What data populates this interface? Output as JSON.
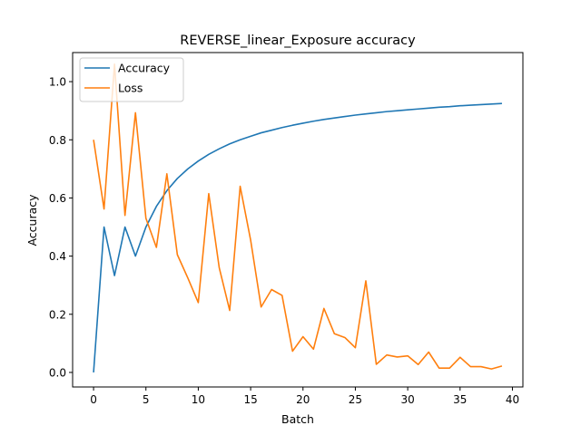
{
  "chart_data": {
    "type": "line",
    "title": "REVERSE_linear_Exposure accuracy",
    "xlabel": "Batch",
    "ylabel": "Accuracy",
    "xlim": [
      -2,
      41
    ],
    "ylim": [
      -0.05,
      1.1
    ],
    "xticks": [
      0,
      5,
      10,
      15,
      20,
      25,
      30,
      35,
      40
    ],
    "yticks": [
      0.0,
      0.2,
      0.4,
      0.6,
      0.8,
      1.0
    ],
    "xtick_labels": [
      "0",
      "5",
      "10",
      "15",
      "20",
      "25",
      "30",
      "35",
      "40"
    ],
    "ytick_labels": [
      "0.0",
      "0.2",
      "0.4",
      "0.6",
      "0.8",
      "1.0"
    ],
    "grid": false,
    "legend_position": "top-left",
    "x": [
      0,
      1,
      2,
      3,
      4,
      5,
      6,
      7,
      8,
      9,
      10,
      11,
      12,
      13,
      14,
      15,
      16,
      17,
      18,
      19,
      20,
      21,
      22,
      23,
      24,
      25,
      26,
      27,
      28,
      29,
      30,
      31,
      32,
      33,
      34,
      35,
      36,
      37,
      38,
      39
    ],
    "series": [
      {
        "name": "Accuracy",
        "color": "#1f77b4",
        "values": [
          0.0,
          0.5,
          0.333,
          0.5,
          0.4,
          0.5,
          0.571,
          0.625,
          0.667,
          0.7,
          0.727,
          0.75,
          0.769,
          0.786,
          0.8,
          0.812,
          0.824,
          0.833,
          0.842,
          0.85,
          0.857,
          0.864,
          0.87,
          0.875,
          0.88,
          0.885,
          0.889,
          0.893,
          0.897,
          0.9,
          0.903,
          0.906,
          0.909,
          0.912,
          0.914,
          0.917,
          0.919,
          0.921,
          0.923,
          0.925
        ]
      },
      {
        "name": "Loss",
        "color": "#ff7f0e",
        "values": [
          0.8,
          0.562,
          1.06,
          0.54,
          0.893,
          0.53,
          0.43,
          0.683,
          0.405,
          0.325,
          0.24,
          0.615,
          0.36,
          0.213,
          0.64,
          0.455,
          0.225,
          0.285,
          0.265,
          0.073,
          0.123,
          0.08,
          0.22,
          0.133,
          0.12,
          0.085,
          0.315,
          0.028,
          0.06,
          0.053,
          0.057,
          0.027,
          0.07,
          0.015,
          0.015,
          0.052,
          0.02,
          0.02,
          0.012,
          0.022
        ]
      }
    ]
  }
}
